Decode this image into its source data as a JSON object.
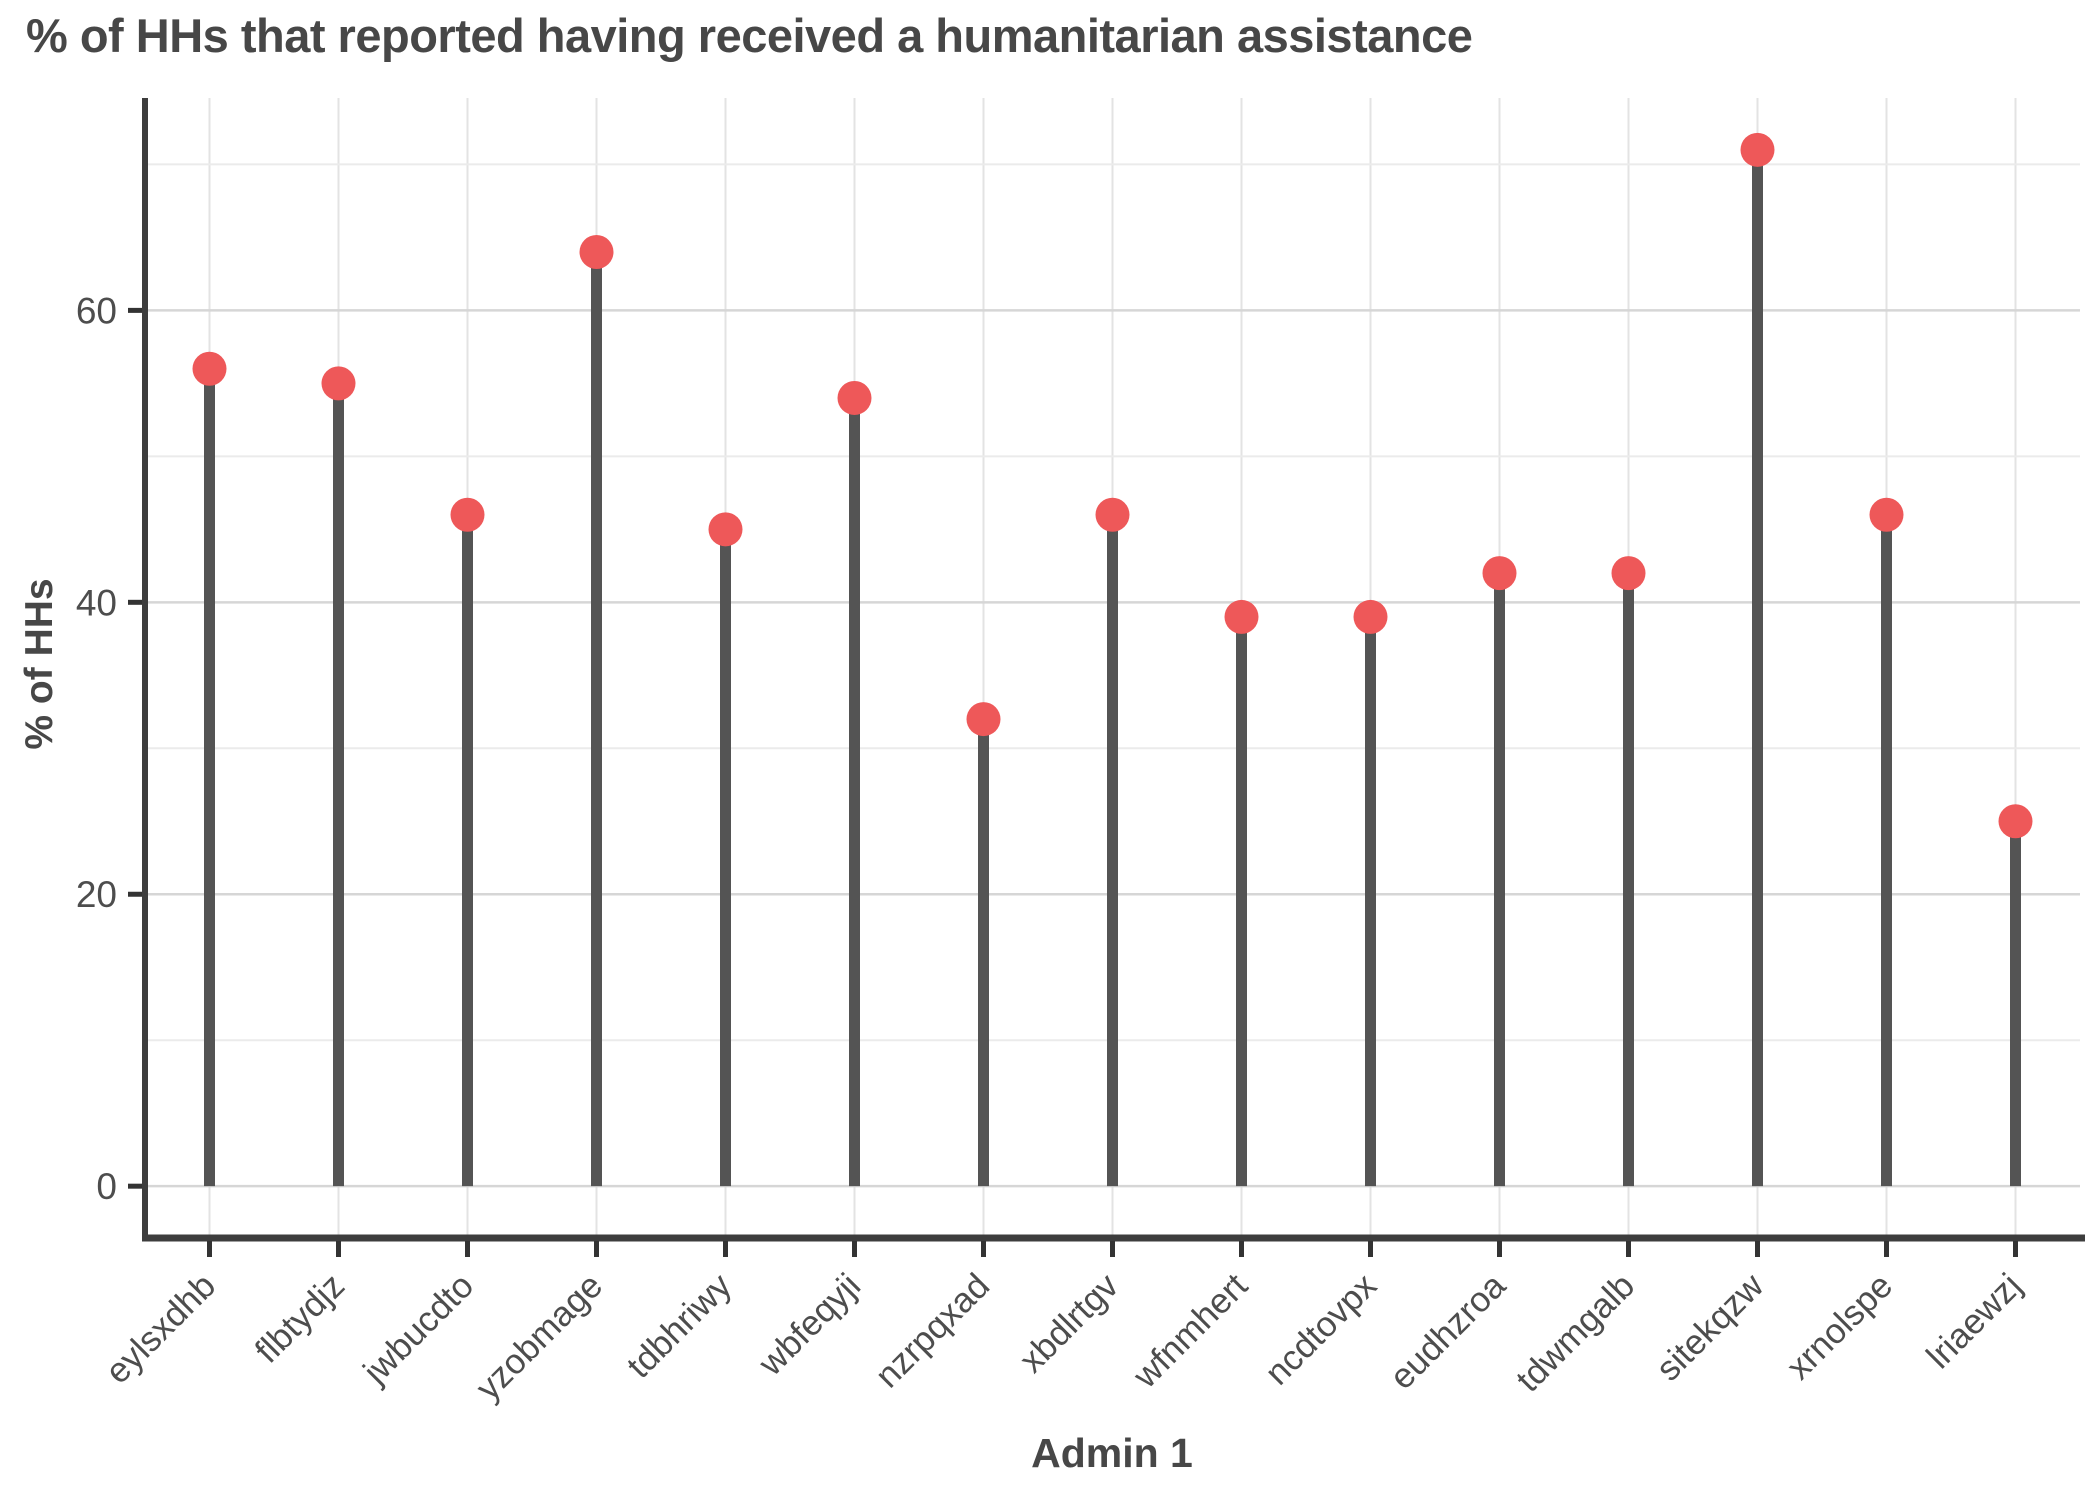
{
  "chart_data": {
    "type": "bar",
    "variant": "lollipop",
    "title": "% of HHs that reported having received a humanitarian assistance",
    "xlabel": "Admin 1",
    "ylabel": "% of HHs",
    "categories": [
      "eylsxdhb",
      "flbtydjz",
      "jwbucdto",
      "yzobmage",
      "tdbhriwy",
      "wbfeqyji",
      "nzrpqxad",
      "xbdlrtgv",
      "wfnmhert",
      "ncdtovpx",
      "eudhzroa",
      "tdwmgalb",
      "sitekqzw",
      "xrnolspe",
      "lriaewzj"
    ],
    "values": [
      56,
      55,
      46,
      64,
      45,
      54,
      32,
      46,
      39,
      39,
      42,
      42,
      71,
      46,
      25
    ],
    "ylim": [
      -3.55,
      74.55
    ],
    "yticks_major": [
      0,
      20,
      40,
      60
    ],
    "yticks_minor": [
      10,
      30,
      50,
      70
    ],
    "grid": "horizontal major+minor, vertical line at each category",
    "legend": "none",
    "x_tick_label_rotation_deg": 45
  },
  "colors": {
    "dot": "#EE5859",
    "stem": "#545454",
    "axis_line": "#3D3D3D",
    "tick_mark": "#333333",
    "tick_label": "#4D4D4D",
    "title_text": "#474747",
    "grid_major": "#D6D6D6",
    "grid_minor": "#EBEBEB",
    "grid_vertical": "#E3E3E3",
    "background": "#FFFFFF"
  }
}
